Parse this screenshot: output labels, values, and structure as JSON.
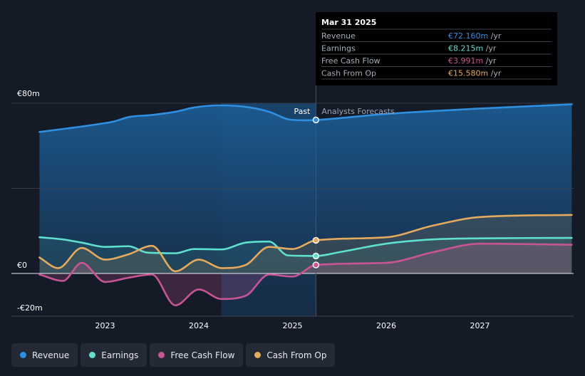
{
  "chart_data": {
    "type": "line",
    "currency": "€",
    "ylim": [
      -20,
      80
    ],
    "y_tick_labels": [
      "€80m",
      "€0",
      "-€20m"
    ],
    "x_tick_labels": [
      "2023",
      "2024",
      "2025",
      "2026",
      "2027"
    ],
    "x_tick_years": [
      2023,
      2024,
      2025,
      2026,
      2027
    ],
    "x_range": [
      2022.3,
      2027.98
    ],
    "past_label": "Past",
    "forecast_label": "Analysts Forecasts",
    "past_end": 2025.25,
    "highlight_start": 2024.24,
    "series": [
      {
        "name": "Revenue",
        "color": "#2f8fe0",
        "points": [
          [
            2022.3,
            66.5
          ],
          [
            2022.6,
            68.2
          ],
          [
            2022.9,
            70.0
          ],
          [
            2023.1,
            71.5
          ],
          [
            2023.25,
            73.5
          ],
          [
            2023.5,
            74.5
          ],
          [
            2023.75,
            76.0
          ],
          [
            2023.95,
            78.0
          ],
          [
            2024.2,
            79.0
          ],
          [
            2024.5,
            78.3
          ],
          [
            2024.75,
            76.0
          ],
          [
            2024.95,
            72.5
          ],
          [
            2025.1,
            72.0
          ],
          [
            2025.25,
            72.16
          ],
          [
            2026.0,
            75.0
          ],
          [
            2027.0,
            77.5
          ],
          [
            2027.98,
            79.5
          ]
        ]
      },
      {
        "name": "Earnings",
        "color": "#5fe0cf",
        "points": [
          [
            2022.3,
            17.0
          ],
          [
            2022.55,
            16.0
          ],
          [
            2022.75,
            14.5
          ],
          [
            2023.0,
            12.5
          ],
          [
            2023.25,
            12.8
          ],
          [
            2023.45,
            9.8
          ],
          [
            2023.75,
            9.5
          ],
          [
            2023.95,
            11.5
          ],
          [
            2024.24,
            11.3
          ],
          [
            2024.5,
            14.5
          ],
          [
            2024.75,
            15.0
          ],
          [
            2024.95,
            8.5
          ],
          [
            2025.1,
            8.3
          ],
          [
            2025.25,
            8.215
          ],
          [
            2025.5,
            10.0
          ],
          [
            2026.0,
            14.0
          ],
          [
            2026.5,
            16.0
          ],
          [
            2027.0,
            16.5
          ],
          [
            2027.98,
            16.7
          ]
        ]
      },
      {
        "name": "Free Cash Flow",
        "color": "#c75594",
        "points": [
          [
            2022.3,
            -0.5
          ],
          [
            2022.55,
            -3.5
          ],
          [
            2022.75,
            5.0
          ],
          [
            2023.0,
            -4.0
          ],
          [
            2023.25,
            -2.0
          ],
          [
            2023.5,
            -0.5
          ],
          [
            2023.75,
            -15.0
          ],
          [
            2024.0,
            -7.5
          ],
          [
            2024.24,
            -12.0
          ],
          [
            2024.5,
            -10.5
          ],
          [
            2024.75,
            -0.5
          ],
          [
            2025.0,
            -1.5
          ],
          [
            2025.25,
            3.991
          ],
          [
            2026.0,
            5.0
          ],
          [
            2026.5,
            10.0
          ],
          [
            2027.0,
            14.0
          ],
          [
            2027.98,
            13.5
          ]
        ]
      },
      {
        "name": "Cash From Op",
        "color": "#e5aa5e",
        "points": [
          [
            2022.3,
            7.5
          ],
          [
            2022.5,
            2.5
          ],
          [
            2022.75,
            12.0
          ],
          [
            2023.0,
            6.5
          ],
          [
            2023.25,
            9.0
          ],
          [
            2023.5,
            13.0
          ],
          [
            2023.75,
            1.0
          ],
          [
            2024.0,
            6.5
          ],
          [
            2024.25,
            2.5
          ],
          [
            2024.5,
            4.0
          ],
          [
            2024.75,
            12.5
          ],
          [
            2025.0,
            11.5
          ],
          [
            2025.25,
            15.58
          ],
          [
            2026.0,
            17.0
          ],
          [
            2026.5,
            22.5
          ],
          [
            2027.0,
            26.5
          ],
          [
            2027.98,
            27.5
          ]
        ]
      }
    ]
  },
  "tooltip": {
    "date": "Mar 31 2025",
    "rows": [
      {
        "label": "Revenue",
        "value": "€72.160m",
        "unit": "/yr"
      },
      {
        "label": "Earnings",
        "value": "€8.215m",
        "unit": "/yr"
      },
      {
        "label": "Free Cash Flow",
        "value": "€3.991m",
        "unit": "/yr"
      },
      {
        "label": "Cash From Op",
        "value": "€15.580m",
        "unit": "/yr"
      }
    ]
  },
  "legend": {
    "items": [
      {
        "label": "Revenue"
      },
      {
        "label": "Earnings"
      },
      {
        "label": "Free Cash Flow"
      },
      {
        "label": "Cash From Op"
      }
    ]
  }
}
